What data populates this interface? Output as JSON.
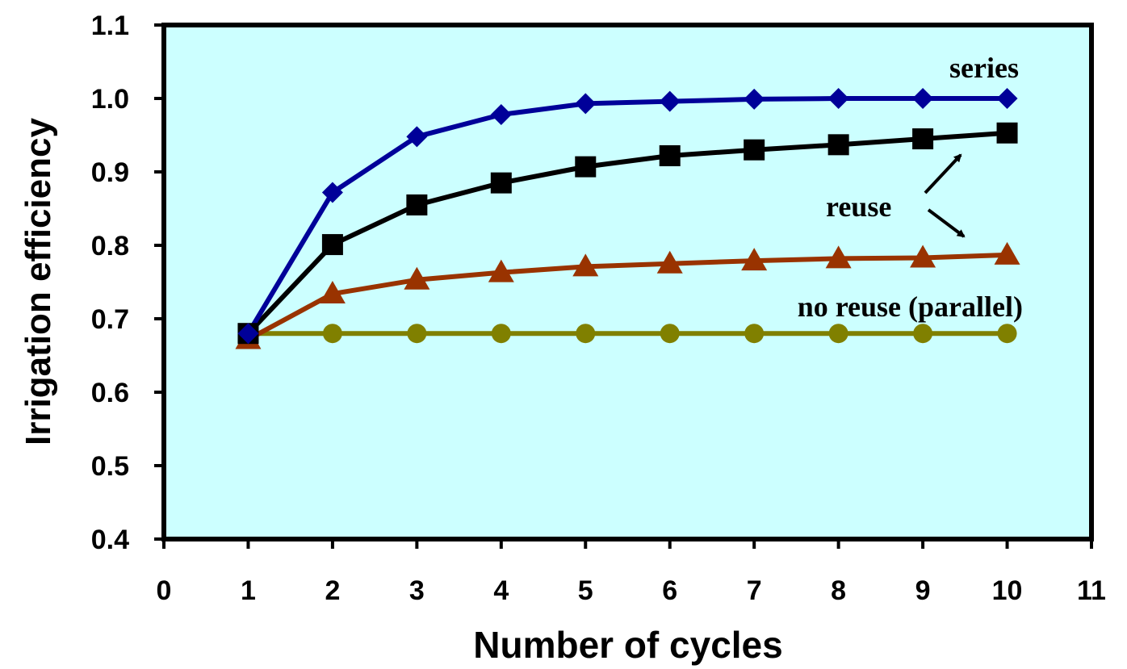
{
  "chart_data": {
    "type": "line",
    "title": "",
    "xlabel": "Number of cycles",
    "ylabel": "Irrigation efficiency",
    "xlim": [
      0,
      11
    ],
    "ylim": [
      0.4,
      1.1
    ],
    "xticks": [
      "0",
      "1",
      "2",
      "3",
      "4",
      "5",
      "6",
      "7",
      "8",
      "9",
      "10",
      "11"
    ],
    "yticks": [
      "0.4",
      "0.5",
      "0.6",
      "0.7",
      "0.8",
      "0.9",
      "1.0",
      "1.1"
    ],
    "grid": false,
    "legend": "none",
    "background": "#ccffff",
    "x": [
      1,
      2,
      3,
      4,
      5,
      6,
      7,
      8,
      9,
      10
    ],
    "series": [
      {
        "marker": "diamond",
        "color": "#000099",
        "values": [
          0.68,
          0.872,
          0.948,
          0.978,
          0.993,
          0.996,
          0.999,
          1.0,
          1.0,
          1.0
        ]
      },
      {
        "marker": "square",
        "color": "#000000",
        "values": [
          0.68,
          0.801,
          0.855,
          0.885,
          0.907,
          0.922,
          0.93,
          0.937,
          0.945,
          0.953
        ]
      },
      {
        "marker": "triangle",
        "color": "#993300",
        "values": [
          0.672,
          0.734,
          0.753,
          0.763,
          0.771,
          0.775,
          0.779,
          0.782,
          0.783,
          0.787
        ]
      },
      {
        "marker": "circle",
        "color": "#808000",
        "values": [
          0.68,
          0.68,
          0.68,
          0.68,
          0.68,
          0.68,
          0.68,
          0.68,
          0.68,
          0.68
        ]
      }
    ],
    "annotations": [
      {
        "text": "series"
      },
      {
        "text": "reuse"
      },
      {
        "text": "no reuse (parallel)"
      }
    ]
  }
}
